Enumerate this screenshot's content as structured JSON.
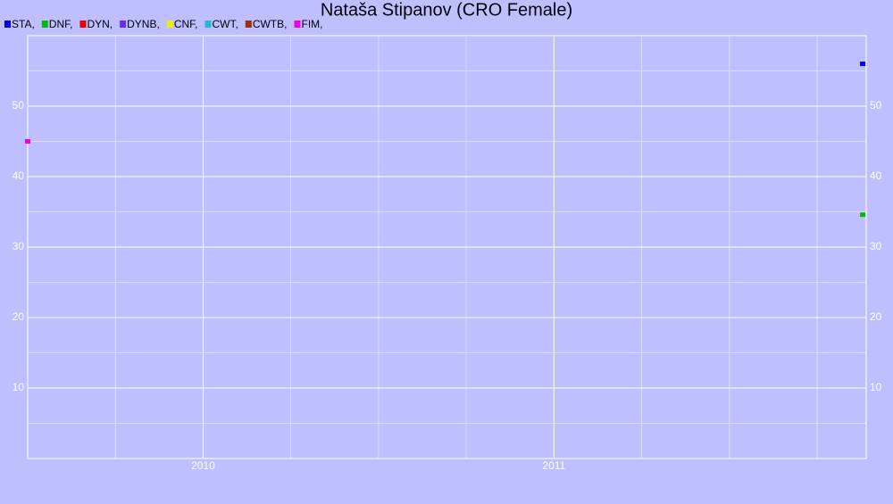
{
  "chart_data": {
    "type": "scatter",
    "title": "Nataša Stipanov (CRO Female)",
    "series": [
      {
        "name": "STA,",
        "color": "#0000ee",
        "x": [
          2011.88
        ],
        "values": [
          56
        ]
      },
      {
        "name": "DNF,",
        "color": "#00bb00",
        "x": [
          2011.88
        ],
        "values": [
          34.6
        ]
      },
      {
        "name": "DYN,",
        "color": "#ee0000",
        "x": [],
        "values": []
      },
      {
        "name": "DYNB,",
        "color": "#6a2ee8",
        "x": [],
        "values": []
      },
      {
        "name": "CNF,",
        "color": "#eeee00",
        "x": [],
        "values": []
      },
      {
        "name": "CWT,",
        "color": "#22bbcc",
        "x": [],
        "values": []
      },
      {
        "name": "CWTB,",
        "color": "#993300",
        "x": [],
        "values": []
      },
      {
        "name": "FIM,",
        "color": "#ee00ee",
        "x": [
          2009.5
        ],
        "values": [
          45
        ]
      }
    ],
    "xlim": [
      2009.5,
      2011.89
    ],
    "xticks": [
      2010,
      2011
    ],
    "xminor": [
      2009.75,
      2010.25,
      2010.5,
      2010.75,
      2011.25,
      2011.5,
      2011.75
    ],
    "ylim": [
      0,
      60
    ],
    "yticks": [
      10,
      20,
      30,
      40,
      50
    ],
    "yminor": [
      5,
      15,
      25,
      35,
      45,
      55
    ],
    "grid": true
  }
}
